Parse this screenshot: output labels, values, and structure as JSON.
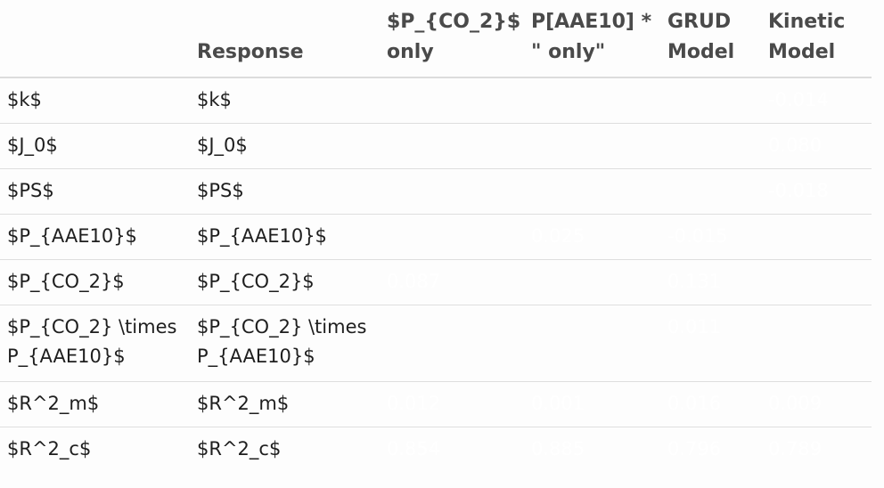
{
  "table": {
    "headers": [
      "",
      "Response",
      "$P_{CO_2}$ only",
      "P[AAE10] * \" only\"",
      "GRUD Model",
      "Kinetic Model"
    ],
    "rows": [
      [
        "$k$",
        "$k$",
        "",
        "",
        "",
        "-0.014"
      ],
      [
        "$J_0$",
        "$J_0$",
        "",
        "",
        "",
        "0.080"
      ],
      [
        "$PS$",
        "$PS$",
        "",
        "",
        "",
        "-0.018"
      ],
      [
        "$P_{AAE10}$",
        "$P_{AAE10}$",
        "",
        "0.025",
        "-0.015",
        ""
      ],
      [
        "$P_{CO_2}$",
        "$P_{CO_2}$",
        "0.087",
        "",
        "0.131",
        ""
      ],
      [
        "$P_{CO_2} \\times P_{AAE10}$",
        "$P_{CO_2} \\times P_{AAE10}$",
        "",
        "",
        "0.011",
        ""
      ],
      [
        "$R^2_m$",
        "$R^2_m$",
        "0.012",
        "0.001",
        "0.016",
        "0.009"
      ],
      [
        "$R^2_c$",
        "$R^2_c$",
        "0.854",
        "0.885",
        "0.796",
        "0.789"
      ]
    ]
  },
  "colors": {
    "background": "#fdfdfd",
    "header_text": "#4a4a4a",
    "body_text": "#1e1e1e",
    "rule": "#dedede",
    "value_text": "#ffffff"
  }
}
